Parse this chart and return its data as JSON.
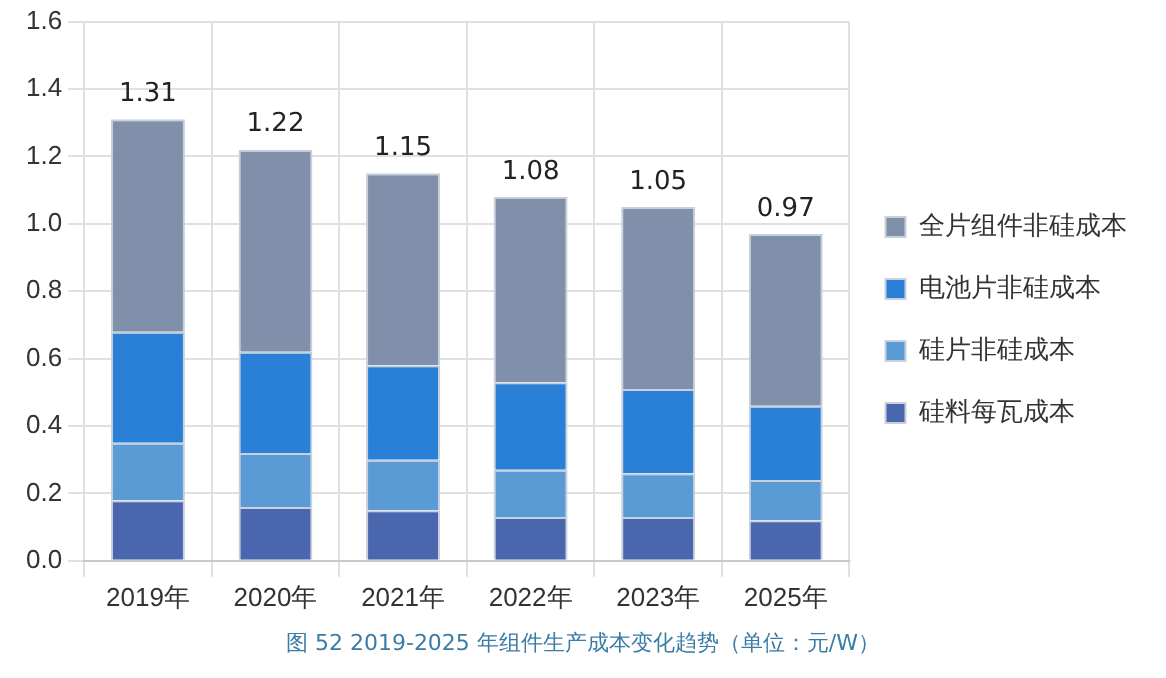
{
  "chart_data": {
    "type": "bar",
    "stacked": true,
    "title": "图 52   2019-2025 年组件生产成本变化趋势（单位：元/W）",
    "categories": [
      "2019年",
      "2020年",
      "2021年",
      "2022年",
      "2023年",
      "2025年"
    ],
    "series": [
      {
        "name": "硅料每瓦成本",
        "color": "#4a66ae",
        "values": [
          0.18,
          0.16,
          0.15,
          0.13,
          0.13,
          0.12
        ]
      },
      {
        "name": "硅片非硅成本",
        "color": "#5b9bd5",
        "values": [
          0.17,
          0.16,
          0.15,
          0.14,
          0.13,
          0.12
        ]
      },
      {
        "name": "电池片非硅成本",
        "color": "#2a7fd6",
        "values": [
          0.33,
          0.3,
          0.28,
          0.26,
          0.25,
          0.22
        ]
      },
      {
        "name": "全片组件非硅成本",
        "color": "#8090aa",
        "values": [
          0.63,
          0.6,
          0.57,
          0.55,
          0.54,
          0.51
        ]
      }
    ],
    "totals": [
      "1.31",
      "1.22",
      "1.15",
      "1.08",
      "1.05",
      "0.97"
    ],
    "ylim": [
      0,
      1.6
    ],
    "yticks": [
      {
        "value": 0,
        "label": "0.0"
      },
      0.2,
      0.4,
      0.6,
      0.8,
      {
        "value": 1,
        "label": "1.0"
      },
      1.2,
      1.4,
      1.6
    ],
    "grid": true,
    "legend": "right"
  }
}
